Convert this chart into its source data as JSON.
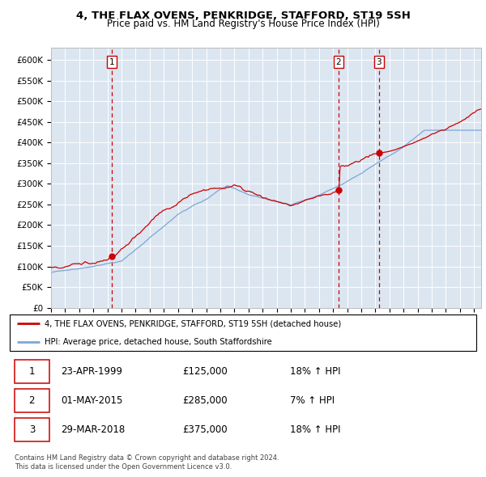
{
  "title": "4, THE FLAX OVENS, PENKRIDGE, STAFFORD, ST19 5SH",
  "subtitle": "Price paid vs. HM Land Registry's House Price Index (HPI)",
  "bg_color": "#dce6f1",
  "red_line_color": "#cc0000",
  "blue_line_color": "#7ba7d4",
  "marker_color": "#cc0000",
  "vline_color": "#cc0000",
  "ylim": [
    0,
    630000
  ],
  "yticks": [
    0,
    50000,
    100000,
    150000,
    200000,
    250000,
    300000,
    350000,
    400000,
    450000,
    500000,
    550000,
    600000
  ],
  "ytick_labels": [
    "£0",
    "£50K",
    "£100K",
    "£150K",
    "£200K",
    "£250K",
    "£300K",
    "£350K",
    "£400K",
    "£450K",
    "£500K",
    "£550K",
    "£600K"
  ],
  "xlim_start": 1995,
  "xlim_end": 2025.5,
  "sale_dates": [
    1999.31,
    2015.38,
    2018.25
  ],
  "sale_prices": [
    125000,
    285000,
    375000
  ],
  "sale_labels": [
    "1",
    "2",
    "3"
  ],
  "legend_red": "4, THE FLAX OVENS, PENKRIDGE, STAFFORD, ST19 5SH (detached house)",
  "legend_blue": "HPI: Average price, detached house, South Staffordshire",
  "table_data": [
    [
      "1",
      "23-APR-1999",
      "£125,000",
      "18% ↑ HPI"
    ],
    [
      "2",
      "01-MAY-2015",
      "£285,000",
      "7% ↑ HPI"
    ],
    [
      "3",
      "29-MAR-2018",
      "£375,000",
      "18% ↑ HPI"
    ]
  ],
  "footnote1": "Contains HM Land Registry data © Crown copyright and database right 2024.",
  "footnote2": "This data is licensed under the Open Government Licence v3.0."
}
